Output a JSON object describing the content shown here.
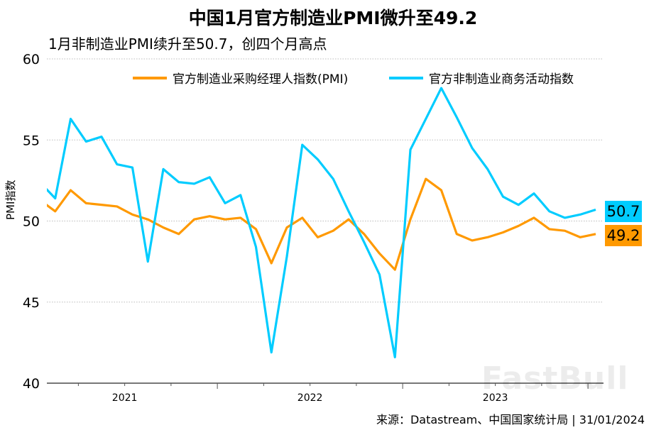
{
  "title": "中国1月官方制造业PMI微升至49.2",
  "subtitle": "1月非制造业PMI续升至50.7，创四个月高点",
  "source": "来源：Datastream、中国国家统计局 | 31/01/2024",
  "watermark": "FastBull",
  "chart_data": {
    "type": "line",
    "ylabel": "PMI指数",
    "xlabel": "",
    "ylim": [
      40,
      60
    ],
    "yticks": [
      40,
      45,
      50,
      55,
      60
    ],
    "xtick_labels": [
      "2021",
      "2022",
      "2023"
    ],
    "grid": "horizontal dotted",
    "legend_position": "top",
    "x": [
      "2021-01",
      "2021-02",
      "2021-03",
      "2021-04",
      "2021-05",
      "2021-06",
      "2021-07",
      "2021-08",
      "2021-09",
      "2021-10",
      "2021-11",
      "2021-12",
      "2022-01",
      "2022-02",
      "2022-03",
      "2022-04",
      "2022-05",
      "2022-06",
      "2022-07",
      "2022-08",
      "2022-09",
      "2022-10",
      "2022-11",
      "2022-12",
      "2023-01",
      "2023-02",
      "2023-03",
      "2023-04",
      "2023-05",
      "2023-06",
      "2023-07",
      "2023-08",
      "2023-09",
      "2023-10",
      "2023-11",
      "2023-12",
      "2024-01"
    ],
    "series": [
      {
        "name": "官方制造业采购经理人指数(PMI)",
        "color": "#FF9900",
        "values": [
          51.3,
          50.6,
          51.9,
          51.1,
          51.0,
          50.9,
          50.4,
          50.1,
          49.6,
          49.2,
          50.1,
          50.3,
          50.1,
          50.2,
          49.5,
          47.4,
          49.6,
          50.2,
          49.0,
          49.4,
          50.1,
          49.2,
          48.0,
          47.0,
          50.1,
          52.6,
          51.9,
          49.2,
          48.8,
          49.0,
          49.3,
          49.7,
          50.2,
          49.5,
          49.4,
          49.0,
          49.2
        ],
        "last_label": "49.2"
      },
      {
        "name": "官方非制造业商务活动指数",
        "color": "#00CCFF",
        "values": [
          52.4,
          51.4,
          56.3,
          54.9,
          55.2,
          53.5,
          53.3,
          47.5,
          53.2,
          52.4,
          52.3,
          52.7,
          51.1,
          51.6,
          48.4,
          41.9,
          47.8,
          54.7,
          53.8,
          52.6,
          50.6,
          48.7,
          46.7,
          41.6,
          54.4,
          56.3,
          58.2,
          56.4,
          54.5,
          53.2,
          51.5,
          51.0,
          51.7,
          50.6,
          50.2,
          50.4,
          50.7
        ],
        "last_label": "50.7"
      }
    ]
  }
}
